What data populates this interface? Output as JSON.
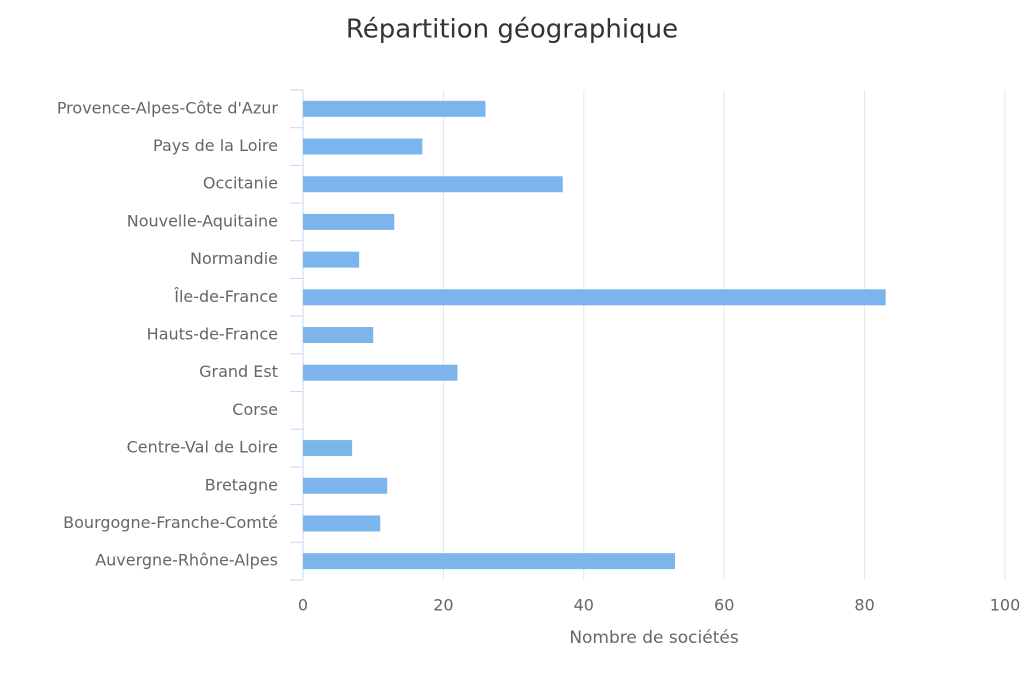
{
  "chart_data": {
    "type": "bar",
    "orientation": "horizontal",
    "title": "Répartition géographique",
    "x_axis_title": "Nombre de sociétés",
    "categories": [
      "Provence-Alpes-Côte d'Azur",
      "Pays de la Loire",
      "Occitanie",
      "Nouvelle-Aquitaine",
      "Normandie",
      "Île-de-France",
      "Hauts-de-France",
      "Grand Est",
      "Corse",
      "Centre-Val de Loire",
      "Bretagne",
      "Bourgogne-Franche-Comté",
      "Auvergne-Rhône-Alpes"
    ],
    "values": [
      26,
      17,
      37,
      13,
      8,
      83,
      10,
      22,
      0,
      7,
      12,
      11,
      53
    ],
    "color": "#7cb5ec",
    "xlim": [
      0,
      100
    ],
    "xticks": [
      0,
      20,
      40,
      60,
      80,
      100
    ],
    "grid": true
  }
}
